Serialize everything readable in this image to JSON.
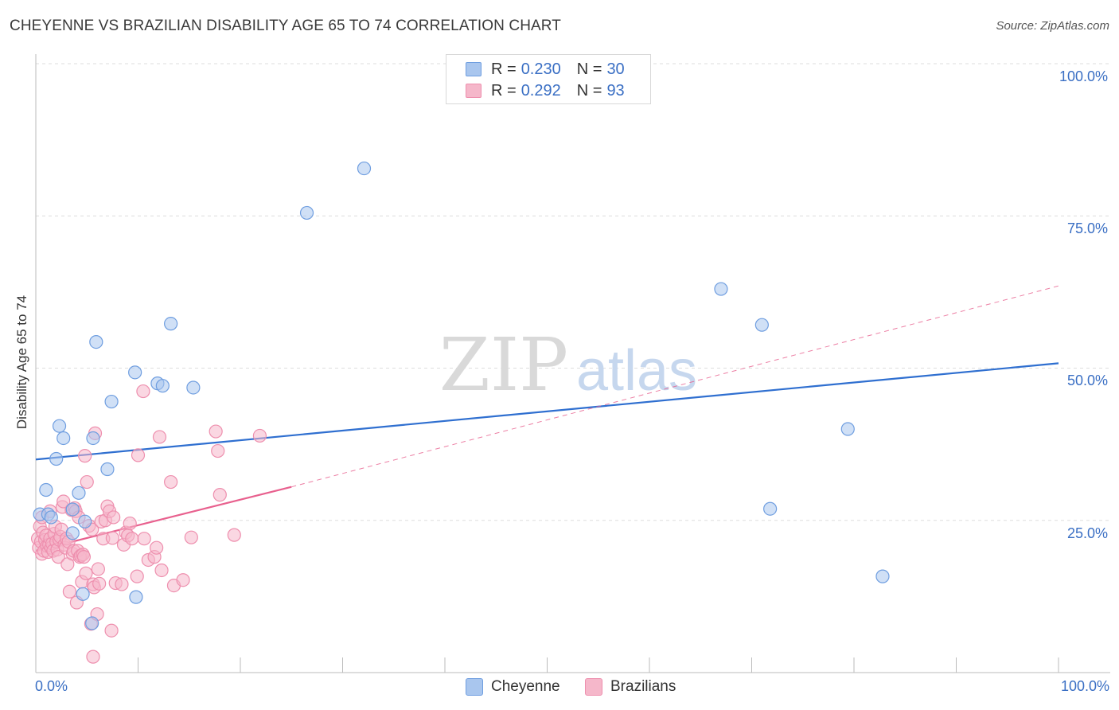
{
  "title": "CHEYENNE VS BRAZILIAN DISABILITY AGE 65 TO 74 CORRELATION CHART",
  "source": "Source: ZipAtlas.com",
  "watermark": {
    "zip": "ZIP",
    "atlas": "atlas"
  },
  "legend": [
    {
      "r_label": "R = ",
      "r_value": "0.230",
      "n_label": "N = ",
      "n_value": "30"
    },
    {
      "r_label": "R = ",
      "r_value": "0.292",
      "n_label": "N = ",
      "n_value": "93"
    }
  ],
  "colors": {
    "cheyenne_fill": "#a9c6ee",
    "cheyenne_stroke": "#6f9ee0",
    "cheyenne_line": "#2f6fd0",
    "brazilian_fill": "#f5b7ca",
    "brazilian_stroke": "#ee8fae",
    "brazilian_line": "#e8608e",
    "grid": "#dddddd",
    "axis_text": "#3a6fc4"
  },
  "chart_data": {
    "type": "scatter",
    "title": "CHEYENNE VS BRAZILIAN DISABILITY AGE 65 TO 74 CORRELATION CHART",
    "xlabel": "",
    "ylabel": "Disability Age 65 to 74",
    "xlim": [
      0,
      100
    ],
    "ylim": [
      0,
      100
    ],
    "x_tick_labels": [
      "0.0%",
      "100.0%"
    ],
    "y_ticks": [
      25,
      50,
      75,
      100
    ],
    "y_tick_labels": [
      "25.0%",
      "50.0%",
      "75.0%",
      "100.0%"
    ],
    "grid": true,
    "legend_position": "top-center",
    "series": [
      {
        "name": "Cheyenne",
        "r": 0.23,
        "n": 30,
        "trend": {
          "x0": 0,
          "y0": 35.0,
          "x1": 100,
          "y1": 50.8,
          "dashed_to": 100
        },
        "points": [
          [
            0.4,
            26.0
          ],
          [
            1.2,
            26.0
          ],
          [
            1.5,
            25.5
          ],
          [
            2.0,
            35.1
          ],
          [
            2.3,
            40.5
          ],
          [
            2.7,
            38.5
          ],
          [
            1.0,
            30.0
          ],
          [
            4.2,
            29.5
          ],
          [
            3.6,
            26.8
          ],
          [
            3.6,
            22.9
          ],
          [
            4.6,
            12.9
          ],
          [
            4.8,
            24.8
          ],
          [
            5.6,
            38.5
          ],
          [
            5.9,
            54.3
          ],
          [
            7.0,
            33.4
          ],
          [
            7.4,
            44.5
          ],
          [
            9.7,
            49.3
          ],
          [
            9.8,
            12.4
          ],
          [
            11.9,
            47.5
          ],
          [
            12.4,
            47.1
          ],
          [
            13.2,
            57.3
          ],
          [
            15.4,
            46.8
          ],
          [
            5.5,
            8.1
          ],
          [
            26.5,
            75.5
          ],
          [
            32.1,
            82.8
          ],
          [
            67.0,
            63.0
          ],
          [
            71.0,
            57.1
          ],
          [
            71.8,
            26.9
          ],
          [
            79.4,
            40.0
          ],
          [
            82.8,
            15.8
          ]
        ]
      },
      {
        "name": "Brazilians",
        "r": 0.292,
        "n": 93,
        "trend": {
          "x0": 0,
          "y0": 20.0,
          "x1": 25,
          "y1": 30.5,
          "dashed_to": 100,
          "dashed_y1": 63.5
        },
        "points": [
          [
            0.2,
            22.0
          ],
          [
            0.3,
            20.5
          ],
          [
            0.4,
            24.0
          ],
          [
            0.5,
            21.5
          ],
          [
            0.6,
            19.5
          ],
          [
            0.7,
            23.0
          ],
          [
            0.8,
            20.0
          ],
          [
            0.9,
            21.8
          ],
          [
            1.0,
            22.5
          ],
          [
            1.1,
            20.8
          ],
          [
            1.2,
            19.8
          ],
          [
            1.3,
            21.0
          ],
          [
            1.4,
            22.0
          ],
          [
            1.5,
            20.5
          ],
          [
            1.6,
            21.2
          ],
          [
            1.7,
            20.0
          ],
          [
            1.8,
            22.8
          ],
          [
            1.9,
            24.0
          ],
          [
            2.0,
            21.5
          ],
          [
            2.1,
            20.2
          ],
          [
            2.2,
            19.0
          ],
          [
            2.3,
            21.8
          ],
          [
            2.4,
            22.3
          ],
          [
            2.5,
            23.5
          ],
          [
            2.6,
            27.2
          ],
          [
            2.7,
            28.1
          ],
          [
            2.8,
            21.0
          ],
          [
            2.9,
            20.5
          ],
          [
            3.0,
            22.0
          ],
          [
            3.1,
            17.8
          ],
          [
            3.2,
            21.5
          ],
          [
            3.3,
            13.3
          ],
          [
            3.5,
            26.7
          ],
          [
            3.6,
            19.5
          ],
          [
            3.7,
            20.0
          ],
          [
            3.8,
            27.0
          ],
          [
            3.9,
            26.5
          ],
          [
            4.0,
            11.5
          ],
          [
            4.1,
            20.0
          ],
          [
            4.2,
            25.5
          ],
          [
            4.3,
            19.0
          ],
          [
            4.4,
            19.2
          ],
          [
            4.5,
            14.9
          ],
          [
            4.6,
            19.4
          ],
          [
            4.7,
            19.0
          ],
          [
            4.8,
            35.6
          ],
          [
            4.9,
            16.3
          ],
          [
            5.0,
            31.3
          ],
          [
            5.2,
            24.1
          ],
          [
            5.4,
            8.0
          ],
          [
            5.5,
            23.5
          ],
          [
            5.6,
            14.5
          ],
          [
            5.7,
            14.0
          ],
          [
            5.8,
            39.3
          ],
          [
            6.0,
            9.6
          ],
          [
            6.1,
            17.0
          ],
          [
            6.2,
            14.6
          ],
          [
            6.4,
            24.8
          ],
          [
            6.6,
            22.0
          ],
          [
            6.8,
            25.0
          ],
          [
            7.0,
            27.3
          ],
          [
            7.2,
            26.5
          ],
          [
            7.4,
            6.9
          ],
          [
            7.5,
            22.1
          ],
          [
            7.6,
            25.5
          ],
          [
            7.8,
            14.7
          ],
          [
            8.4,
            14.5
          ],
          [
            8.6,
            21.0
          ],
          [
            8.8,
            23.0
          ],
          [
            9.0,
            22.5
          ],
          [
            9.2,
            24.5
          ],
          [
            9.4,
            22.0
          ],
          [
            9.9,
            15.8
          ],
          [
            10.0,
            35.7
          ],
          [
            10.5,
            46.2
          ],
          [
            10.6,
            22.0
          ],
          [
            11.0,
            18.5
          ],
          [
            11.6,
            19.0
          ],
          [
            11.8,
            20.5
          ],
          [
            12.1,
            38.7
          ],
          [
            12.3,
            16.8
          ],
          [
            13.2,
            31.3
          ],
          [
            13.5,
            14.3
          ],
          [
            14.4,
            15.2
          ],
          [
            15.2,
            22.2
          ],
          [
            17.6,
            39.6
          ],
          [
            17.8,
            36.4
          ],
          [
            18.0,
            29.2
          ],
          [
            19.4,
            22.6
          ],
          [
            21.9,
            38.9
          ],
          [
            5.6,
            2.6
          ],
          [
            0.6,
            25.5
          ],
          [
            1.4,
            26.5
          ]
        ]
      }
    ]
  }
}
